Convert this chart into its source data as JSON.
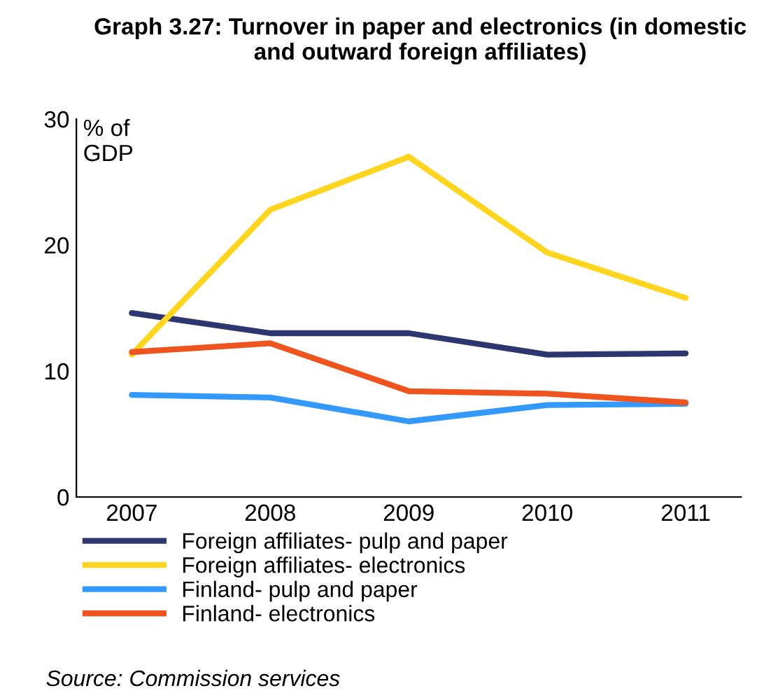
{
  "chart_data": {
    "type": "line",
    "title": "Graph 3.27: Turnover in paper and electronics (in domestic and outward foreign affiliates)",
    "ylabel": "% of\nGDP",
    "categories": [
      "2007",
      "2008",
      "2009",
      "2010",
      "2011"
    ],
    "series": [
      {
        "name": "Foreign affiliates- pulp and paper",
        "color": "#2e3670",
        "values": [
          14.6,
          13.0,
          13.0,
          11.3,
          11.4
        ]
      },
      {
        "name": "Foreign affiliates- electronics",
        "color": "#ffd51f",
        "values": [
          11.3,
          22.8,
          27.0,
          19.4,
          15.8
        ]
      },
      {
        "name": "Finland- pulp and paper",
        "color": "#3399ff",
        "values": [
          8.1,
          7.9,
          6.0,
          7.3,
          7.4
        ]
      },
      {
        "name": "Finland- electronics",
        "color": "#f0541e",
        "values": [
          11.5,
          12.2,
          8.4,
          8.2,
          7.5
        ]
      }
    ],
    "ylim": [
      0,
      30
    ],
    "yticks": [
      0,
      10,
      20,
      30
    ],
    "grid": false,
    "legend": "bottom",
    "marker": "none",
    "line_style": "solid",
    "annotations": [
      "Source: Commission services"
    ]
  }
}
